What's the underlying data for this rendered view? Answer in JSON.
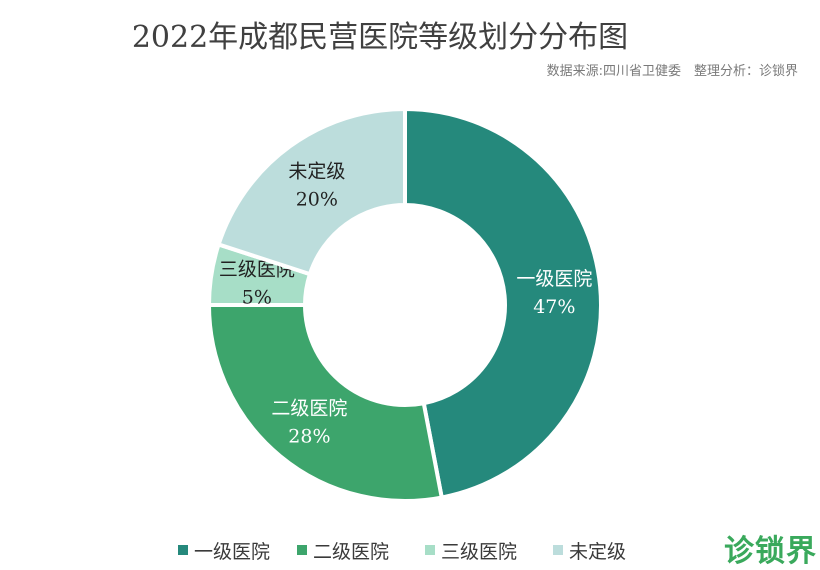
{
  "title": "2022年成都民营医院等级划分分布图",
  "source": "数据来源:四川省卫健委　整理分析：诊锁界",
  "brand": "诊锁界",
  "chart_data": {
    "type": "pie",
    "variant": "donut",
    "categories": [
      "一级医院",
      "二级医院",
      "三级医院",
      "未定级"
    ],
    "values": [
      47,
      28,
      5,
      20
    ],
    "value_labels": [
      "47%",
      "28%",
      "5%",
      "20%"
    ],
    "colors": [
      "#25897c",
      "#3da56c",
      "#a7dec7",
      "#bcdddc"
    ],
    "label_colors": [
      "#ffffff",
      "#ffffff",
      "#222222",
      "#222222"
    ],
    "legend_position": "bottom"
  }
}
